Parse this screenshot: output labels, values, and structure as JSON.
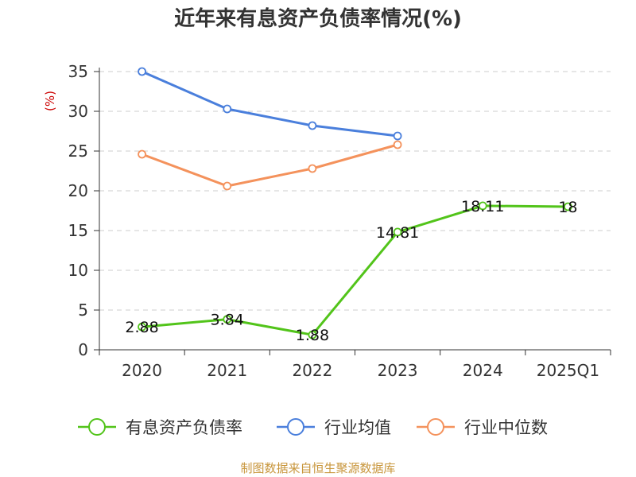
{
  "chart_data": {
    "type": "line",
    "title": "近年来有息资产负债率情况(%)",
    "ylabel": "(%)",
    "xlabel": "",
    "categories": [
      "2020",
      "2021",
      "2022",
      "2023",
      "2024",
      "2025Q1"
    ],
    "ylim": [
      0,
      35
    ],
    "yticks": [
      0,
      5,
      10,
      15,
      20,
      25,
      30,
      35
    ],
    "grid": true,
    "legend_position": "bottom",
    "series": [
      {
        "name": "有息资产负债率",
        "color": "#52c41a",
        "values": [
          2.88,
          3.84,
          1.88,
          14.81,
          18.11,
          18
        ],
        "labels": [
          "2.88",
          "3.84",
          "1.88",
          "14.81",
          "18.11",
          "18"
        ]
      },
      {
        "name": "行业均值",
        "color": "#4a7fdc",
        "values": [
          35.0,
          30.3,
          28.2,
          26.9,
          null,
          null
        ]
      },
      {
        "name": "行业中位数",
        "color": "#f4925c",
        "values": [
          24.6,
          20.6,
          22.8,
          25.8,
          null,
          null
        ]
      }
    ],
    "source": "制图数据来自恒生聚源数据库"
  }
}
